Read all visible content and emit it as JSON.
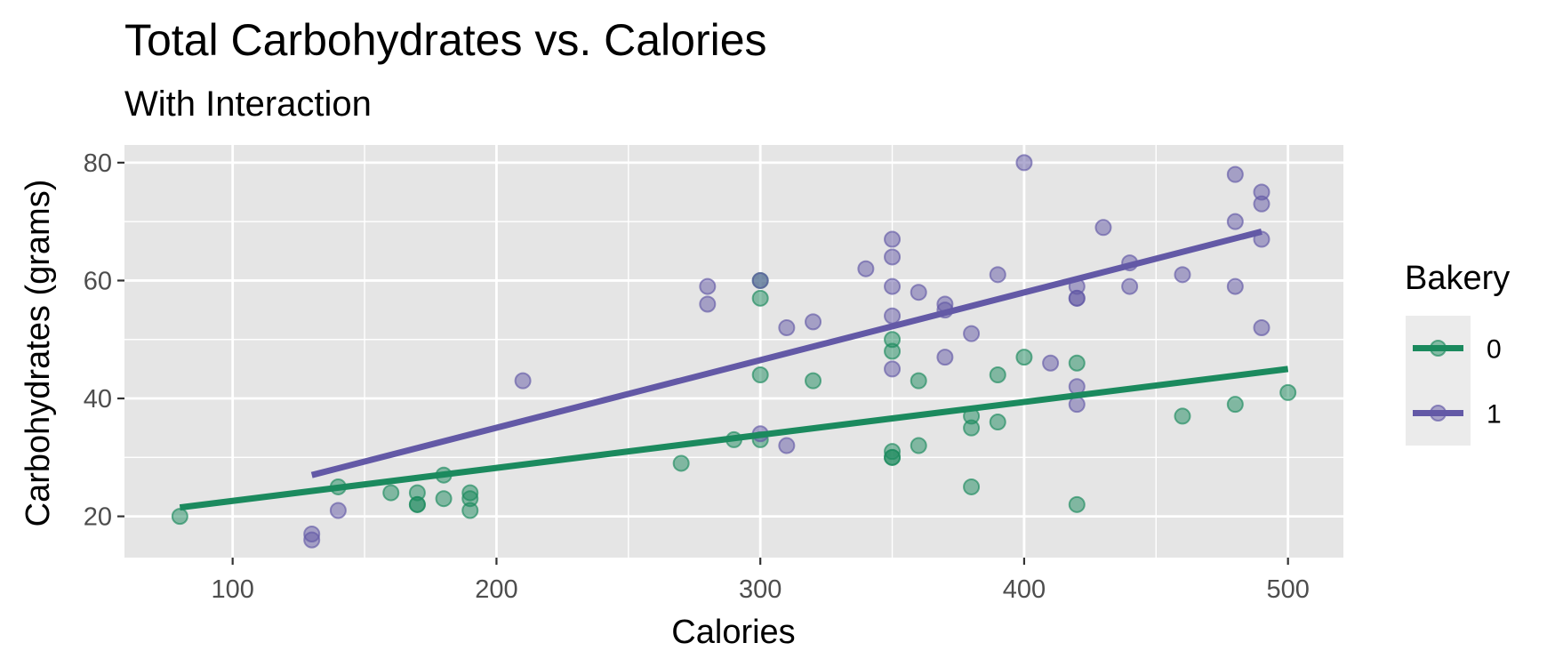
{
  "chart_data": {
    "type": "scatter",
    "title": "Total Carbohydrates vs. Calories",
    "subtitle": "With Interaction",
    "xlabel": "Calories",
    "ylabel": "Carbohydrates (grams)",
    "xlim": [
      59,
      521
    ],
    "ylim": [
      13,
      83
    ],
    "x_ticks": [
      100,
      200,
      300,
      400,
      500
    ],
    "y_ticks": [
      20,
      40,
      60,
      80
    ],
    "grid": true,
    "background": "#e5e5e5",
    "legend": {
      "title": "Bakery",
      "position": "right"
    },
    "series": [
      {
        "name": "0",
        "color": "#1b8a5e",
        "points": [
          [
            80,
            20
          ],
          [
            140,
            25
          ],
          [
            160,
            24
          ],
          [
            170,
            24
          ],
          [
            170,
            22
          ],
          [
            170,
            22
          ],
          [
            180,
            27
          ],
          [
            180,
            23
          ],
          [
            190,
            24
          ],
          [
            190,
            23
          ],
          [
            190,
            21
          ],
          [
            270,
            29
          ],
          [
            290,
            33
          ],
          [
            300,
            60
          ],
          [
            300,
            57
          ],
          [
            300,
            44
          ],
          [
            300,
            33
          ],
          [
            320,
            43
          ],
          [
            350,
            50
          ],
          [
            350,
            48
          ],
          [
            350,
            31
          ],
          [
            350,
            30
          ],
          [
            350,
            30
          ],
          [
            360,
            43
          ],
          [
            360,
            32
          ],
          [
            380,
            37
          ],
          [
            380,
            35
          ],
          [
            380,
            25
          ],
          [
            390,
            44
          ],
          [
            390,
            36
          ],
          [
            400,
            47
          ],
          [
            420,
            46
          ],
          [
            420,
            22
          ],
          [
            460,
            37
          ],
          [
            480,
            39
          ],
          [
            500,
            41
          ]
        ],
        "fit": {
          "x": [
            80,
            500
          ],
          "y": [
            21.5,
            45
          ]
        }
      },
      {
        "name": "1",
        "color": "#6359a6",
        "points": [
          [
            130,
            17
          ],
          [
            130,
            16
          ],
          [
            140,
            21
          ],
          [
            210,
            43
          ],
          [
            280,
            59
          ],
          [
            280,
            56
          ],
          [
            300,
            60
          ],
          [
            300,
            34
          ],
          [
            310,
            52
          ],
          [
            310,
            32
          ],
          [
            320,
            53
          ],
          [
            340,
            62
          ],
          [
            350,
            67
          ],
          [
            350,
            64
          ],
          [
            350,
            59
          ],
          [
            350,
            54
          ],
          [
            350,
            45
          ],
          [
            360,
            58
          ],
          [
            370,
            56
          ],
          [
            370,
            55
          ],
          [
            370,
            47
          ],
          [
            380,
            51
          ],
          [
            390,
            61
          ],
          [
            400,
            80
          ],
          [
            410,
            46
          ],
          [
            420,
            59
          ],
          [
            420,
            57
          ],
          [
            420,
            57
          ],
          [
            420,
            42
          ],
          [
            420,
            39
          ],
          [
            430,
            69
          ],
          [
            440,
            63
          ],
          [
            440,
            59
          ],
          [
            460,
            61
          ],
          [
            480,
            78
          ],
          [
            480,
            70
          ],
          [
            480,
            59
          ],
          [
            490,
            75
          ],
          [
            490,
            73
          ],
          [
            490,
            67
          ],
          [
            490,
            52
          ]
        ],
        "fit": {
          "x": [
            130,
            490
          ],
          "y": [
            27,
            68.3
          ]
        }
      }
    ]
  }
}
